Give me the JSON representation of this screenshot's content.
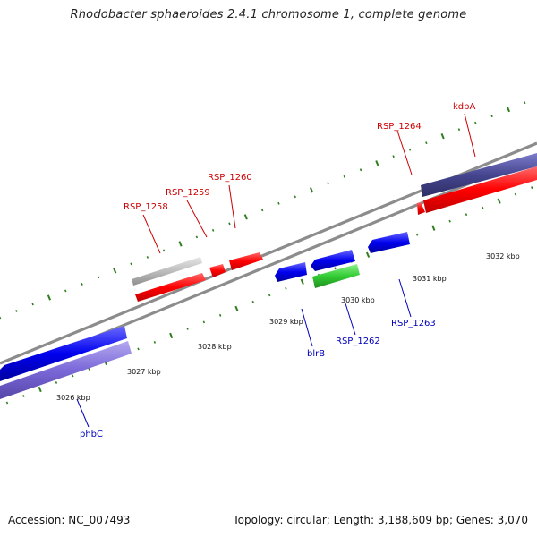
{
  "title": "Rhodobacter sphaeroides 2.4.1 chromosome 1, complete genome",
  "footer": {
    "accession": "Accession: NC_007493",
    "summary": "Topology: circular; Length: 3,188,609 bp; Genes: 3,070"
  },
  "colors": {
    "backbone": "#8a8a8a",
    "forward_ticks": "#2e7d1e",
    "reverse_ticks": "#2e7d1e",
    "label_forward": "#cc0000",
    "label_reverse": "#0000bb"
  },
  "scale_labels": [
    "3026 kbp",
    "3027 kbp",
    "3028 kbp",
    "3029 kbp",
    "3030 kbp",
    "3031 kbp",
    "3032 kbp"
  ],
  "forward_labels": [
    {
      "text": "RSP_1258"
    },
    {
      "text": "RSP_1259"
    },
    {
      "text": "RSP_1260"
    },
    {
      "text": "RSP_1264"
    },
    {
      "text": "kdpA"
    }
  ],
  "reverse_labels": [
    {
      "text": "phbC"
    },
    {
      "text": "blrB"
    },
    {
      "text": "RSP_1262"
    },
    {
      "text": "RSP_1263"
    }
  ]
}
